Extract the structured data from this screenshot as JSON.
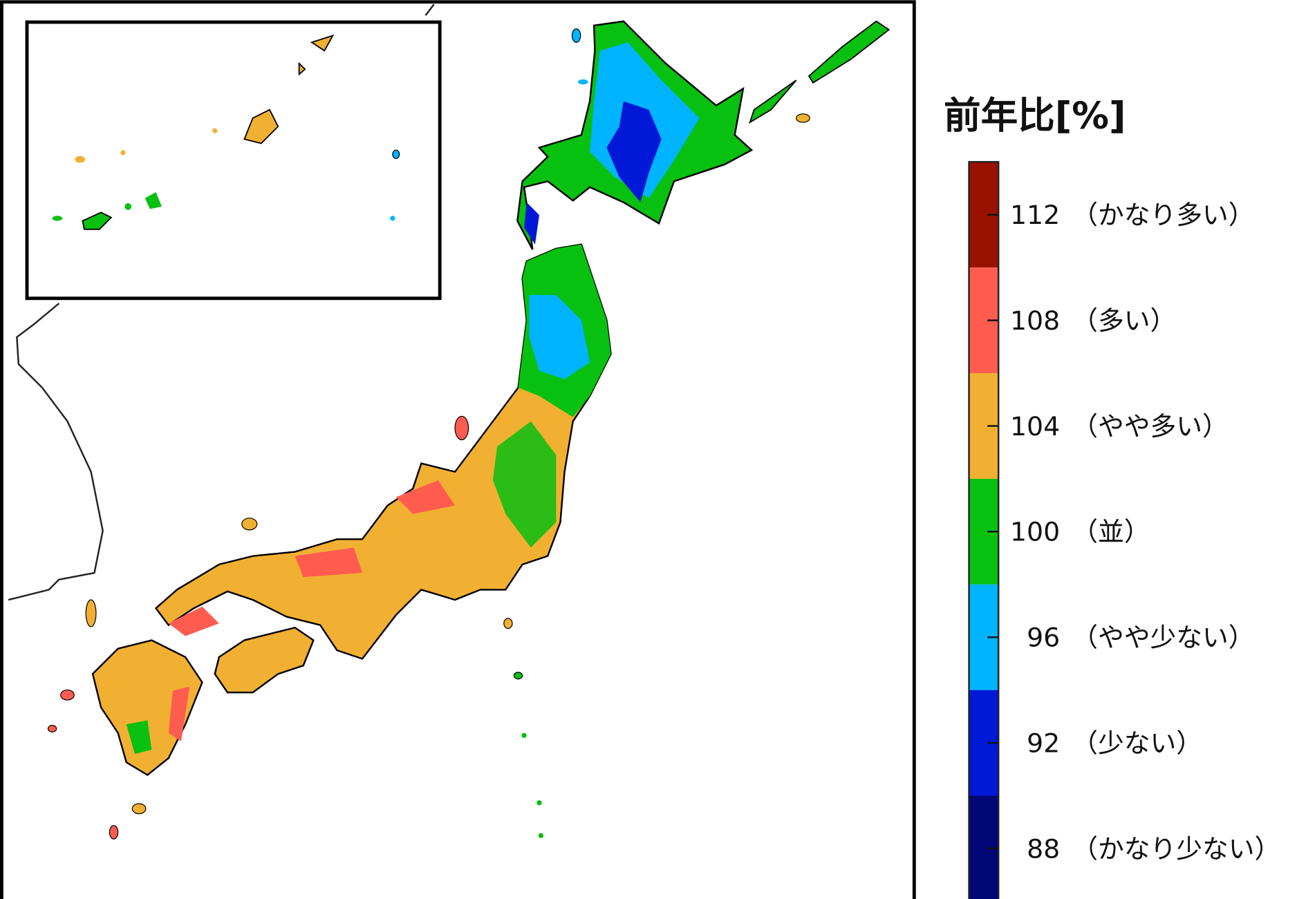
{
  "legend": {
    "title": "前年比[%]",
    "bins": [
      {
        "value": "112",
        "desc": "（かなり多い）",
        "color": "#9b1100"
      },
      {
        "value": "108",
        "desc": "（多い）",
        "color": "#ff5c50"
      },
      {
        "value": "104",
        "desc": "（やや多い）",
        "color": "#f2b033"
      },
      {
        "value": "100",
        "desc": "（並）",
        "color": "#08c010"
      },
      {
        "value": "96",
        "desc": "（やや少ない）",
        "color": "#00b4ff"
      },
      {
        "value": "92",
        "desc": "（少ない）",
        "color": "#0019d8"
      },
      {
        "value": "88",
        "desc": "（かなり少ない）",
        "color": "#000878"
      }
    ]
  },
  "map": {
    "region": "Japan",
    "inset": "Okinawa / Amami / Ogasawara islands"
  }
}
